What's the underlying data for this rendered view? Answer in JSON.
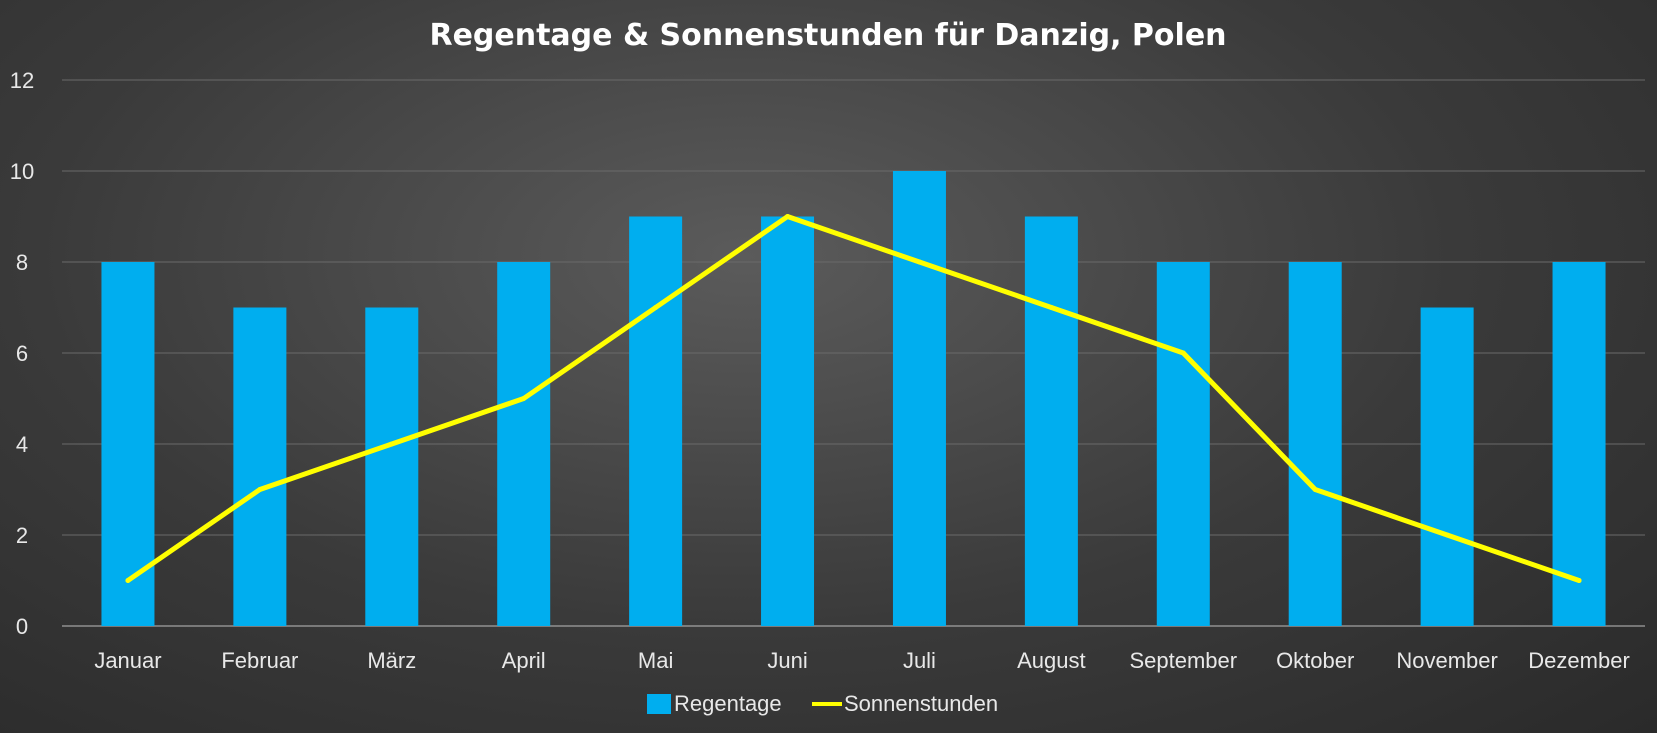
{
  "chart_data": {
    "type": "bar",
    "title": "Regentage & Sonnenstunden für Danzig, Polen",
    "categories": [
      "Januar",
      "Februar",
      "März",
      "April",
      "Mai",
      "Juni",
      "Juli",
      "August",
      "September",
      "Oktober",
      "November",
      "Dezember"
    ],
    "series": [
      {
        "name": "Regentage",
        "type": "bar",
        "color": "#00aeef",
        "values": [
          8,
          7,
          7,
          8,
          9,
          9,
          10,
          9,
          8,
          8,
          7,
          8
        ]
      },
      {
        "name": "Sonnenstunden",
        "type": "line",
        "color": "#ffff00",
        "values": [
          1,
          3,
          4,
          5,
          7,
          9,
          8,
          7,
          6,
          3,
          2,
          1
        ]
      }
    ],
    "ylim": [
      0,
      12
    ],
    "yticks": [
      "0",
      "2",
      "4",
      "6",
      "8",
      "10",
      "12"
    ],
    "grid": true,
    "legend": "bottom"
  }
}
